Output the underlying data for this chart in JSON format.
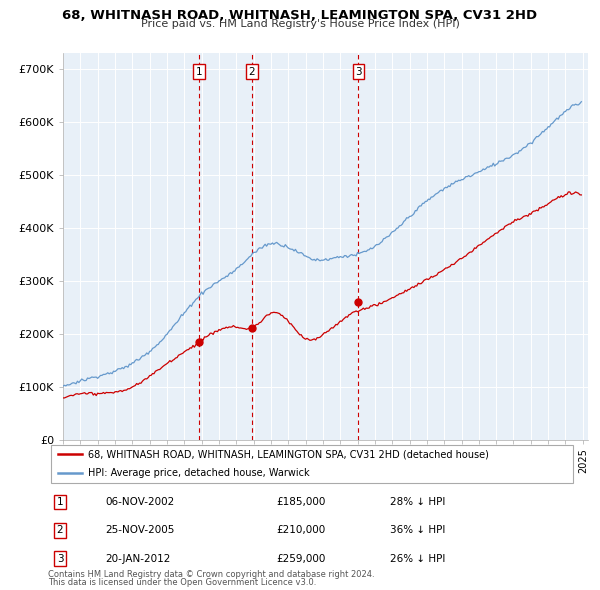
{
  "title_line1": "68, WHITNASH ROAD, WHITNASH, LEAMINGTON SPA, CV31 2HD",
  "title_line2": "Price paid vs. HM Land Registry's House Price Index (HPI)",
  "ylabel_ticks": [
    "£0",
    "£100K",
    "£200K",
    "£300K",
    "£400K",
    "£500K",
    "£600K",
    "£700K"
  ],
  "ytick_values": [
    0,
    100000,
    200000,
    300000,
    400000,
    500000,
    600000,
    700000
  ],
  "ylim": [
    0,
    730000
  ],
  "xlim_start": 1995.0,
  "xlim_end": 2025.3,
  "transactions": [
    {
      "label": "1",
      "date": "06-NOV-2002",
      "price": 185000,
      "year": 2002.85,
      "pct": "28% ↓ HPI"
    },
    {
      "label": "2",
      "date": "25-NOV-2005",
      "price": 210000,
      "year": 2005.9,
      "pct": "36% ↓ HPI"
    },
    {
      "label": "3",
      "date": "20-JAN-2012",
      "price": 259000,
      "year": 2012.05,
      "pct": "26% ↓ HPI"
    }
  ],
  "legend_line1": "68, WHITNASH ROAD, WHITNASH, LEAMINGTON SPA, CV31 2HD (detached house)",
  "legend_line2": "HPI: Average price, detached house, Warwick",
  "footer_line1": "Contains HM Land Registry data © Crown copyright and database right 2024.",
  "footer_line2": "This data is licensed under the Open Government Licence v3.0.",
  "red_color": "#cc0000",
  "blue_color": "#6699cc",
  "plot_bg_color": "#e8f0f8",
  "background_color": "#ffffff",
  "grid_color": "#ffffff"
}
